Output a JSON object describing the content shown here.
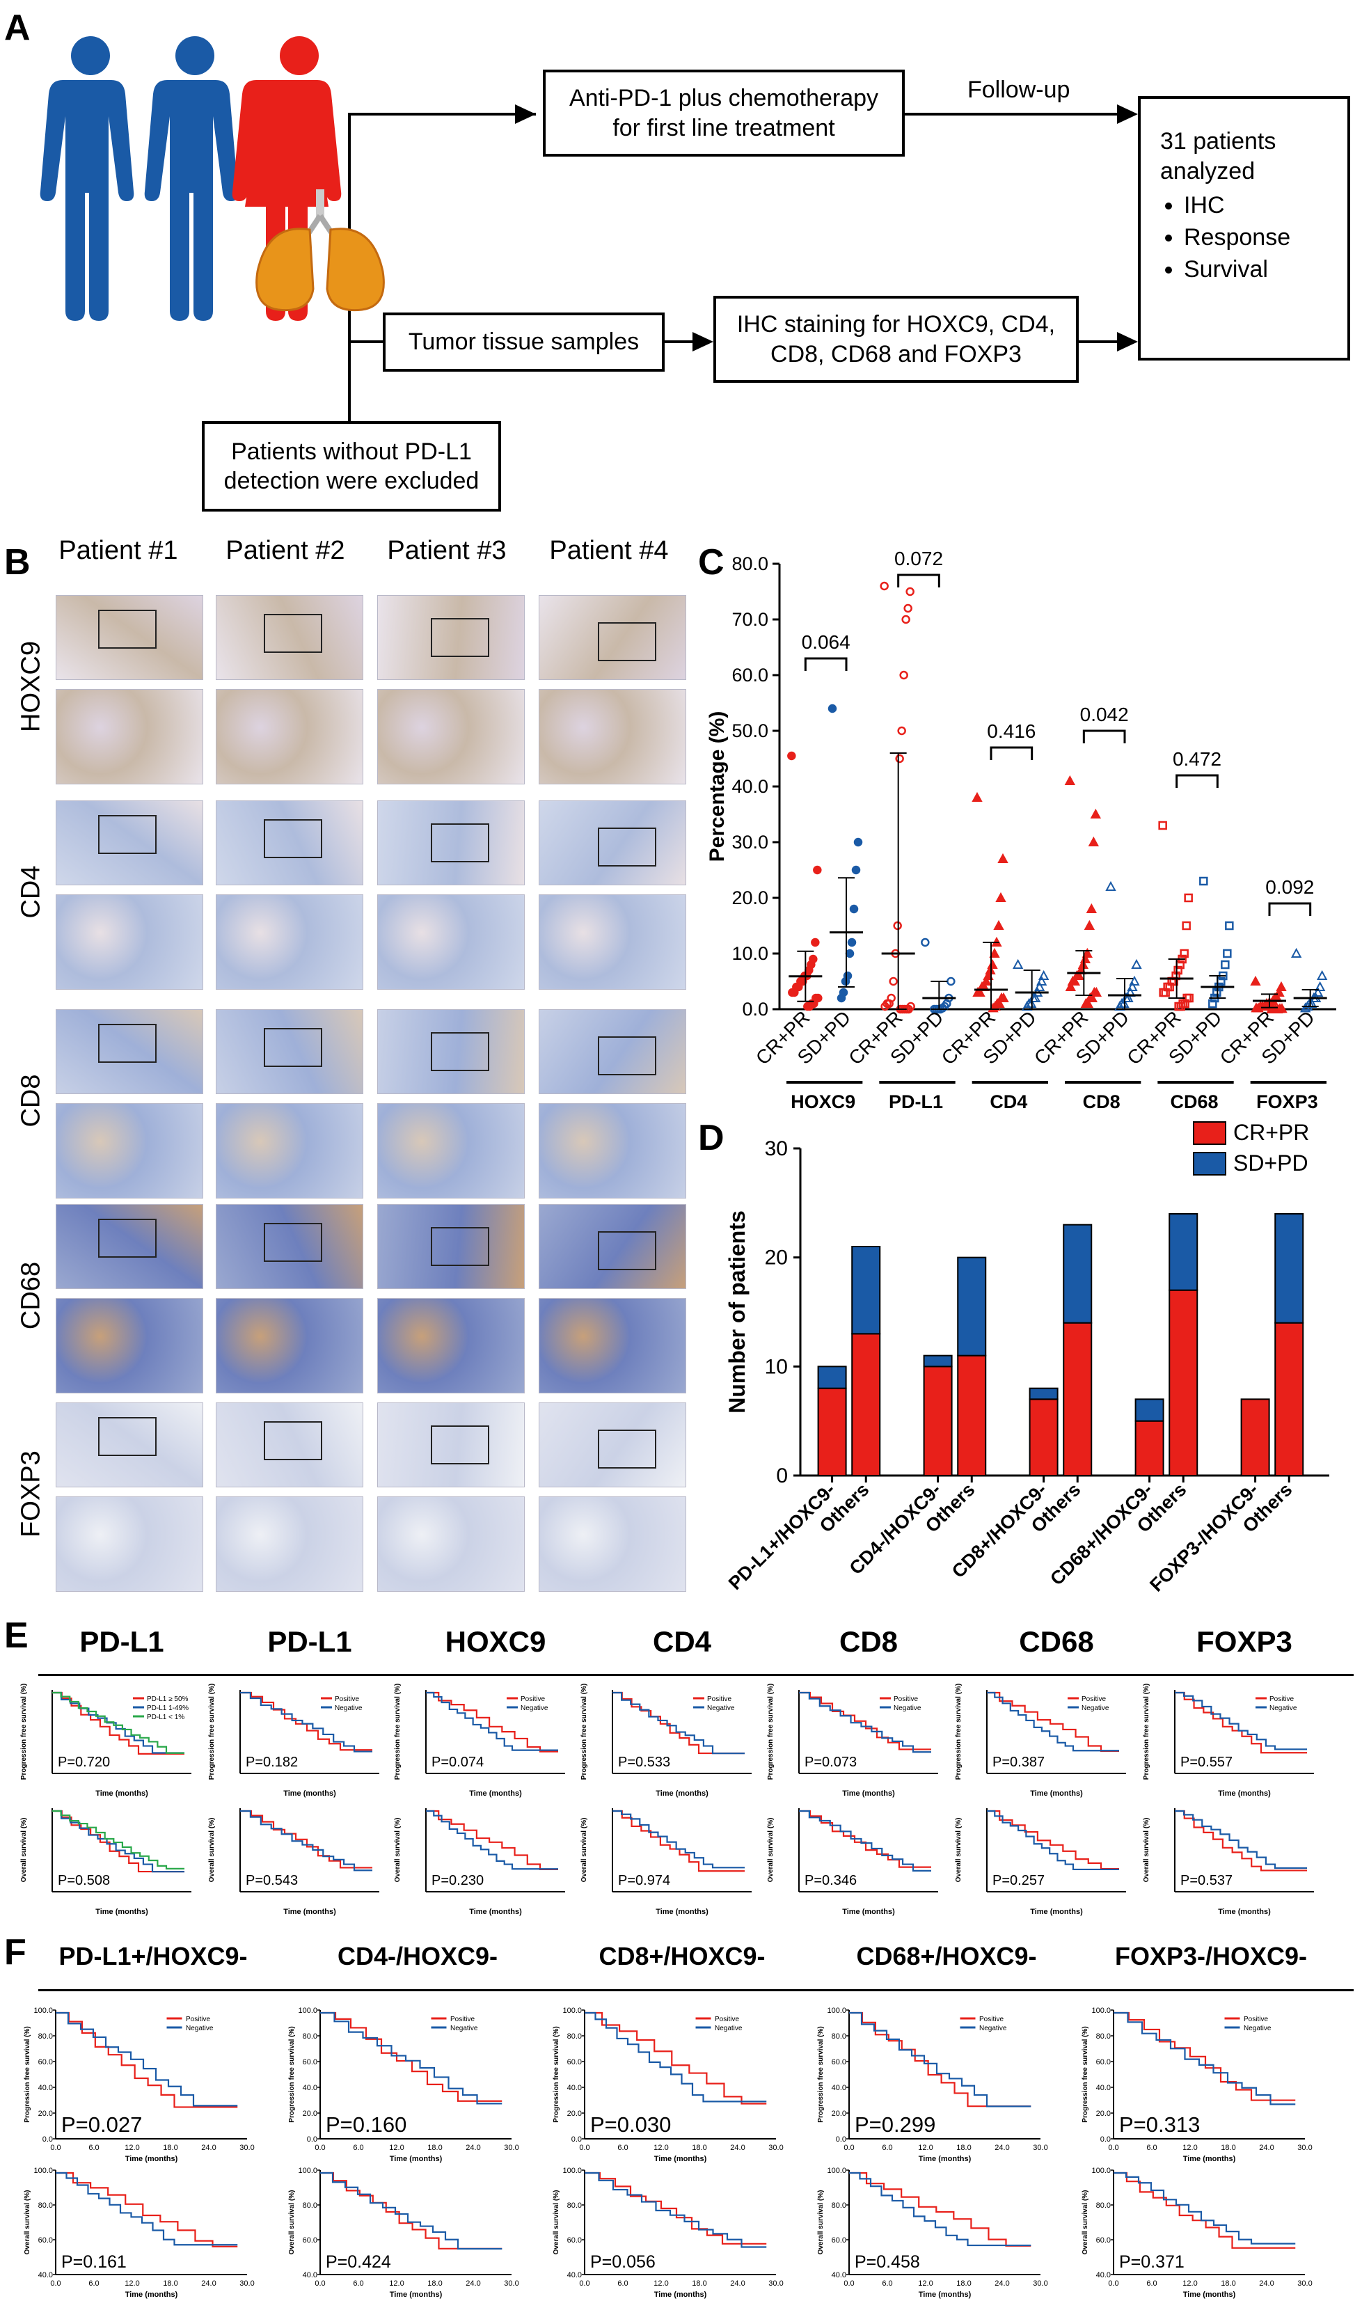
{
  "panels": {
    "A": "A",
    "B": "B",
    "C": "C",
    "D": "D",
    "E": "E",
    "F": "F"
  },
  "flowchart": {
    "treatment_box": "Anti-PD-1 plus chemotherapy\nfor first line treatment",
    "follow_up_label": "Follow-up",
    "result_title": "31 patients\nanalyzed",
    "result_items": [
      "IHC",
      "Response",
      "Survival"
    ],
    "tissue_box": "Tumor tissue samples",
    "ihc_box": "IHC staining for HOXC9, CD4,\nCD8, CD68 and FOXP3",
    "excluded_box": "Patients without PD-L1\ndetection were excluded",
    "colors": {
      "person_blue": "#1a5aa6",
      "person_red": "#e8201a",
      "lung": "#e8941a"
    }
  },
  "micrographs": {
    "columns": [
      "Patient #1",
      "Patient #2",
      "Patient #3",
      "Patient #4"
    ],
    "rows": [
      "HOXC9",
      "CD4",
      "CD8",
      "CD68",
      "FOXP3"
    ]
  },
  "chart_data": [
    {
      "id": "C",
      "type": "scatter",
      "ylabel": "Percentage (%)",
      "ylim": [
        0,
        80
      ],
      "yticks": [
        "0.0",
        "10.0",
        "20.0",
        "30.0",
        "40.0",
        "50.0",
        "60.0",
        "70.0",
        "80.0"
      ],
      "groups": [
        {
          "marker": "HOXC9",
          "p": "0.064",
          "cr_label": "CR+PR",
          "sd_label": "SD+PD",
          "cr_mean": 5.9,
          "cr_sd": 4.5,
          "sd_mean": 13.8,
          "sd_sd": 9.8,
          "cr_points": [
            45.5,
            25,
            12,
            9,
            8,
            7,
            6,
            6,
            5,
            5,
            4,
            4,
            3,
            3,
            2,
            2,
            1,
            1,
            0.5,
            0.5
          ],
          "sd_points": [
            54,
            30,
            25,
            18,
            12,
            10,
            6,
            5,
            3,
            2
          ]
        },
        {
          "marker": "PD-L1",
          "p": "0.072",
          "cr_label": "CR+PR",
          "sd_label": "SD+PD",
          "cr_mean": 10,
          "cr_sd": 36,
          "sd_mean": 2,
          "sd_sd": 3,
          "cr_points": [
            76,
            75,
            72,
            70,
            60,
            50,
            45,
            15,
            10,
            5,
            2,
            1,
            1,
            0.5,
            0.5,
            0,
            0,
            0,
            0,
            0
          ],
          "sd_points": [
            12,
            5,
            2,
            1,
            0.5,
            0.2,
            0,
            0,
            0,
            0
          ]
        },
        {
          "marker": "CD4",
          "p": "0.416",
          "cr_label": "CR+PR",
          "sd_label": "SD+PD",
          "cr_mean": 3.5,
          "cr_sd": 8.5,
          "sd_mean": 3,
          "sd_sd": 4,
          "cr_points": [
            38,
            27,
            20,
            15,
            12,
            10,
            8,
            7,
            6,
            5,
            4,
            4,
            3,
            3,
            2,
            2,
            1,
            1,
            0.5,
            0.2
          ],
          "sd_points": [
            8,
            6,
            5,
            4,
            3,
            2,
            2,
            1,
            1,
            0.5
          ]
        },
        {
          "marker": "CD8",
          "p": "0.042",
          "cr_label": "CR+PR",
          "sd_label": "SD+PD",
          "cr_mean": 6.5,
          "cr_sd": 4,
          "sd_mean": 2.5,
          "sd_sd": 3,
          "cr_points": [
            41,
            35,
            30,
            18,
            15,
            10,
            9,
            8,
            7,
            6,
            6,
            5,
            5,
            4,
            3,
            3,
            2,
            2,
            1,
            1
          ],
          "sd_points": [
            22,
            8,
            5,
            4,
            3,
            2,
            2,
            1,
            1,
            0.5
          ]
        },
        {
          "marker": "CD68",
          "p": "0.472",
          "cr_label": "CR+PR",
          "sd_label": "SD+PD",
          "cr_mean": 5.5,
          "cr_sd": 3.5,
          "sd_mean": 4,
          "sd_sd": 2,
          "cr_points": [
            33,
            20,
            15,
            10,
            9,
            8,
            7,
            6,
            5,
            5,
            4,
            4,
            3,
            3,
            2,
            2,
            1,
            1,
            0.5,
            0.5
          ],
          "sd_points": [
            23,
            15,
            10,
            8,
            6,
            5,
            4,
            3,
            2,
            1
          ]
        },
        {
          "marker": "FOXP3",
          "p": "0.092",
          "cr_label": "CR+PR",
          "sd_label": "SD+PD",
          "cr_mean": 1.5,
          "cr_sd": 1.2,
          "sd_mean": 2,
          "sd_sd": 1.5,
          "cr_points": [
            5,
            4,
            3,
            2,
            2,
            1.5,
            1,
            1,
            1,
            0.5,
            0.5,
            0.5,
            0.2,
            0.2,
            0.1,
            0.1,
            0,
            0,
            0,
            0
          ],
          "sd_points": [
            10,
            6,
            4,
            3,
            2,
            2,
            1,
            1,
            0.5,
            0.2
          ]
        }
      ],
      "colors": {
        "cr": "#e8201a",
        "sd": "#1a5aa6"
      }
    },
    {
      "id": "D",
      "type": "bar",
      "ylabel": "Number of patients",
      "ylim": [
        0,
        30
      ],
      "yticks": [
        "0",
        "10",
        "20",
        "30"
      ],
      "categories": [
        "PD-L1+/HOXC9-",
        "Others",
        "CD4-/HOXC9-",
        "Others",
        "CD8+/HOXC9-",
        "Others",
        "CD68+/HOXC9-",
        "Others",
        "FOXP3-/HOXC9-",
        "Others"
      ],
      "series": [
        {
          "name": "CR+PR",
          "color": "#e8201a",
          "values": [
            8,
            13,
            10,
            11,
            7,
            14,
            5,
            17,
            7,
            14
          ]
        },
        {
          "name": "SD+PD",
          "color": "#1a5aa6",
          "values": [
            2,
            8,
            1,
            9,
            1,
            9,
            2,
            7,
            0,
            10
          ]
        }
      ],
      "legend": "top-right"
    },
    {
      "id": "E",
      "type": "line",
      "titles": [
        "PD-L1",
        "PD-L1",
        "HOXC9",
        "CD4",
        "CD8",
        "CD68",
        "FOXP3"
      ],
      "pfs_p": [
        "P=0.720",
        "P=0.182",
        "P=0.074",
        "P=0.533",
        "P=0.073",
        "P=0.387",
        "P=0.557"
      ],
      "os_p": [
        "P=0.508",
        "P=0.543",
        "P=0.230",
        "P=0.974",
        "P=0.346",
        "P=0.257",
        "P=0.537"
      ],
      "legend_first": [
        "PD-L1 ≥ 50%",
        "PD-L1 1-49%",
        "PD-L1 < 1%"
      ],
      "legend_other": [
        "Positive",
        "Negative"
      ],
      "ylabel_pfs": "Progression free survival (%)",
      "ylabel_os": "Overall survival (%)",
      "xlabel": "Time (months)"
    },
    {
      "id": "F",
      "type": "line",
      "titles": [
        "PD-L1+/HOXC9-",
        "CD4-/HOXC9-",
        "CD8+/HOXC9-",
        "CD68+/HOXC9-",
        "FOXP3-/HOXC9-"
      ],
      "pfs_p": [
        "P=0.027",
        "P=0.160",
        "P=0.030",
        "P=0.299",
        "P=0.313"
      ],
      "os_p": [
        "P=0.161",
        "P=0.424",
        "P=0.056",
        "P=0.458",
        "P=0.371"
      ],
      "legend": [
        "Positive",
        "Negative"
      ],
      "yticks": [
        "0.0",
        "20.0",
        "40.0",
        "60.0",
        "80.0",
        "100.0"
      ],
      "os_yticks": [
        "40.0",
        "60.0",
        "80.0",
        "100.0"
      ],
      "xticks": [
        "0.0",
        "6.0",
        "12.0",
        "18.0",
        "24.0",
        "30.0"
      ],
      "ylabel_pfs": "Progression free survival (%)",
      "ylabel_os": "Overall survival (%)",
      "xlabel": "Time (months)"
    }
  ]
}
